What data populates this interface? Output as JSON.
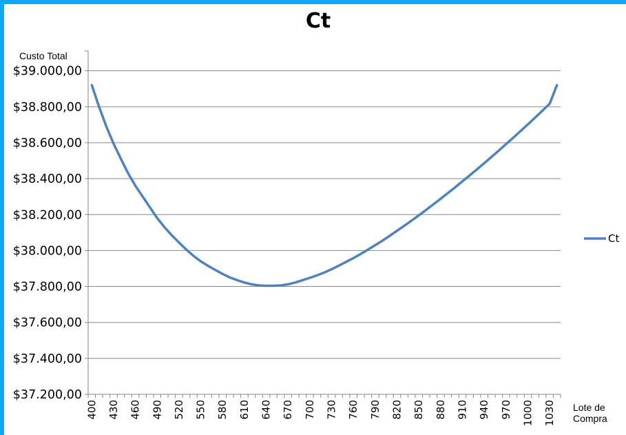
{
  "chart_data": {
    "type": "line",
    "title": "Ct",
    "xlabel": "Lote de Compra",
    "ylabel": "Custo Total",
    "ylim": [
      37200,
      39000
    ],
    "yticks": [
      37200,
      37400,
      37600,
      37800,
      38000,
      38200,
      38400,
      38600,
      38800,
      39000
    ],
    "ytick_labels": [
      "$37.200,00",
      "$37.400,00",
      "$37.600,00",
      "$37.800,00",
      "$38.000,00",
      "$38.200,00",
      "$38.400,00",
      "$38.600,00",
      "$38.800,00",
      "$39.000,00"
    ],
    "xtick_labels": [
      "400",
      "430",
      "460",
      "490",
      "520",
      "550",
      "580",
      "610",
      "640",
      "670",
      "700",
      "730",
      "760",
      "790",
      "820",
      "850",
      "880",
      "910",
      "940",
      "970",
      "1000",
      "1030"
    ],
    "grid": true,
    "legend_position": "right",
    "x": [
      400,
      410,
      420,
      430,
      440,
      450,
      460,
      470,
      480,
      490,
      500,
      510,
      520,
      530,
      540,
      550,
      560,
      570,
      580,
      590,
      600,
      610,
      620,
      630,
      640,
      650,
      660,
      670,
      680,
      690,
      700,
      710,
      720,
      730,
      740,
      750,
      760,
      770,
      780,
      790,
      800,
      810,
      820,
      830,
      840,
      850,
      860,
      870,
      880,
      890,
      900,
      910,
      920,
      930,
      940,
      950,
      960,
      970,
      980,
      990,
      1000,
      1010,
      1020,
      1030,
      1040
    ],
    "series": [
      {
        "name": "Ct",
        "color": "#4f81bd",
        "values": [
          38920,
          38800,
          38690,
          38595,
          38510,
          38430,
          38360,
          38300,
          38240,
          38180,
          38130,
          38085,
          38045,
          38005,
          37970,
          37940,
          37915,
          37892,
          37870,
          37850,
          37835,
          37822,
          37812,
          37806,
          37804,
          37804,
          37806,
          37812,
          37822,
          37835,
          37848,
          37862,
          37878,
          37896,
          37916,
          37937,
          37958,
          37981,
          38005,
          38030,
          38055,
          38082,
          38110,
          38138,
          38166,
          38196,
          38226,
          38257,
          38288,
          38320,
          38352,
          38385,
          38418,
          38452,
          38486,
          38521,
          38556,
          38592,
          38628,
          38665,
          38702,
          38740,
          38778,
          38817,
          38920
        ]
      }
    ]
  }
}
